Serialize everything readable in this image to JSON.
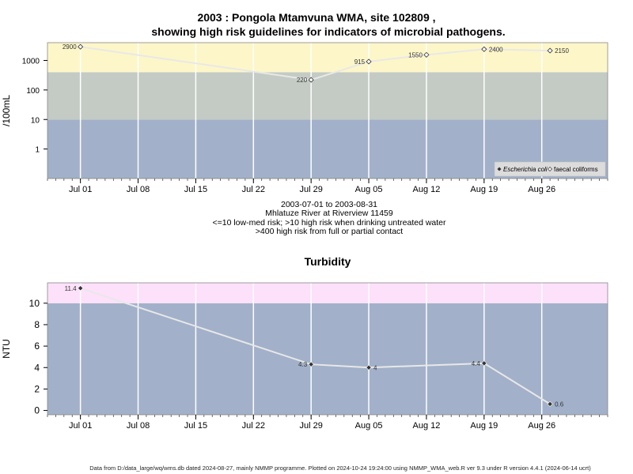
{
  "header": {
    "title_line1": "2003 : Pongola Mtamvuna WMA, site 102809 ,",
    "title_line2": "showing high risk guidelines for indicators of microbial pathogens."
  },
  "caption": {
    "date_range": "2003-07-01 to 2003-08-31",
    "site": "Mhlatuze River at Riverview 11459",
    "guideline1": "<=10 low-med risk; >10 high risk when drinking untreated water",
    "guideline2": ">400 high risk from full or partial contact"
  },
  "footer": {
    "text": "Data from D:/data_large/wq/wms.db dated 2024-08-27, mainly NMMP programme. Plotted on 2024-10-24 19:24:00 using NMMP_WMA_web.R ver 9.3 under R version 4.4.1 (2024-06-14 ucrt)"
  },
  "colors": {
    "band_high": "#fdf6c8",
    "band_mid": "#c4cbc4",
    "band_low": "#a2b1c9",
    "band_turb_high": "#fde0fa",
    "line": "#e8e8e8",
    "grid": "#ffffff"
  },
  "chart_data": [
    {
      "type": "line",
      "title": "",
      "ylabel": "/100mL",
      "xlabel": "",
      "y_scale": "log",
      "ylim": [
        0.1,
        4000
      ],
      "xlim": [
        "2003-06-27",
        "2003-09-03"
      ],
      "y_ticks": [
        1,
        10,
        100,
        1000
      ],
      "y_tick_labels": [
        "1",
        "10",
        "100",
        "1000"
      ],
      "x_ticks": [
        "2003-07-01",
        "2003-07-08",
        "2003-07-15",
        "2003-07-22",
        "2003-07-29",
        "2003-08-05",
        "2003-08-12",
        "2003-08-19",
        "2003-08-26"
      ],
      "x_tick_labels": [
        "Jul 01",
        "Jul 08",
        "Jul 15",
        "Jul 22",
        "Jul 29",
        "Aug 05",
        "Aug 12",
        "Aug 19",
        "Aug 26"
      ],
      "bands": [
        {
          "from": 0.1,
          "to": 10,
          "color": "#a2b1c9"
        },
        {
          "from": 10,
          "to": 400,
          "color": "#c4cbc4"
        },
        {
          "from": 400,
          "to": 4000,
          "color": "#fdf6c8"
        }
      ],
      "grid": true,
      "legend_position": "bottom-right",
      "legend": [
        {
          "label": "Escherichia coli",
          "marker": "filled-diamond"
        },
        {
          "label": "faecal coliforms",
          "marker": "open-diamond"
        }
      ],
      "series": [
        {
          "name": "faecal coliforms",
          "marker": "open-diamond",
          "x": [
            "2003-07-01",
            "2003-07-29",
            "2003-08-05",
            "2003-08-12",
            "2003-08-19",
            "2003-08-27"
          ],
          "values": [
            2900,
            220,
            915,
            1550,
            2400,
            2150
          ],
          "labels": [
            "2900",
            "220",
            "915",
            "1550",
            "2400",
            "2150"
          ]
        }
      ]
    },
    {
      "type": "line",
      "title": "Turbidity",
      "ylabel": "NTU",
      "xlabel": "",
      "ylim": [
        -0.4,
        11.9
      ],
      "xlim": [
        "2003-06-27",
        "2003-09-03"
      ],
      "y_ticks": [
        0,
        2,
        4,
        6,
        8,
        10
      ],
      "y_tick_labels": [
        "0",
        "2",
        "4",
        "6",
        "8",
        "10"
      ],
      "x_ticks": [
        "2003-07-01",
        "2003-07-08",
        "2003-07-15",
        "2003-07-22",
        "2003-07-29",
        "2003-08-05",
        "2003-08-12",
        "2003-08-19",
        "2003-08-26"
      ],
      "x_tick_labels": [
        "Jul 01",
        "Jul 08",
        "Jul 15",
        "Jul 22",
        "Jul 29",
        "Aug 05",
        "Aug 12",
        "Aug 19",
        "Aug 26"
      ],
      "bands": [
        {
          "from": -0.4,
          "to": 10,
          "color": "#a2b1c9"
        },
        {
          "from": 10,
          "to": 11.9,
          "color": "#fde0fa"
        }
      ],
      "grid": true,
      "series": [
        {
          "marker": "filled-diamond",
          "x": [
            "2003-07-01",
            "2003-07-29",
            "2003-08-05",
            "2003-08-19",
            "2003-08-27"
          ],
          "values": [
            11.4,
            4.3,
            4,
            4.4,
            0.6
          ],
          "labels": [
            "11.4",
            "4.3",
            "4",
            "4.4",
            "0.6"
          ]
        }
      ]
    }
  ]
}
